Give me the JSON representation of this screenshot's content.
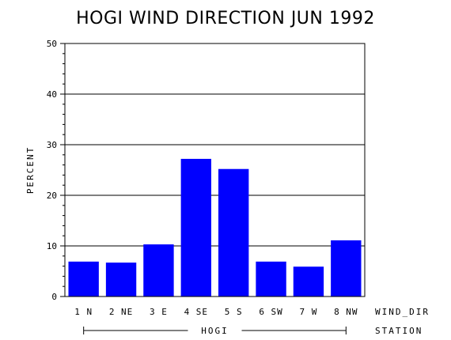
{
  "chart_data": {
    "type": "bar",
    "title": "HOGI WIND DIRECTION JUN 1992",
    "ylabel": "PERCENT",
    "xlabel": "WIND_DIR",
    "group_axis_label": "STATION",
    "group_label": "HOGI",
    "categories": [
      "1 N",
      "2 NE",
      "3 E",
      "4 SE",
      "5 S",
      "6 SW",
      "7 W",
      "8 NW"
    ],
    "values": [
      6.9,
      6.7,
      10.3,
      27.2,
      25.2,
      6.9,
      5.9,
      11.1
    ],
    "ylim": [
      0,
      50
    ],
    "yticks": [
      0,
      10,
      20,
      30,
      40,
      50
    ],
    "grid": true,
    "bar_color": "#0000ff"
  }
}
